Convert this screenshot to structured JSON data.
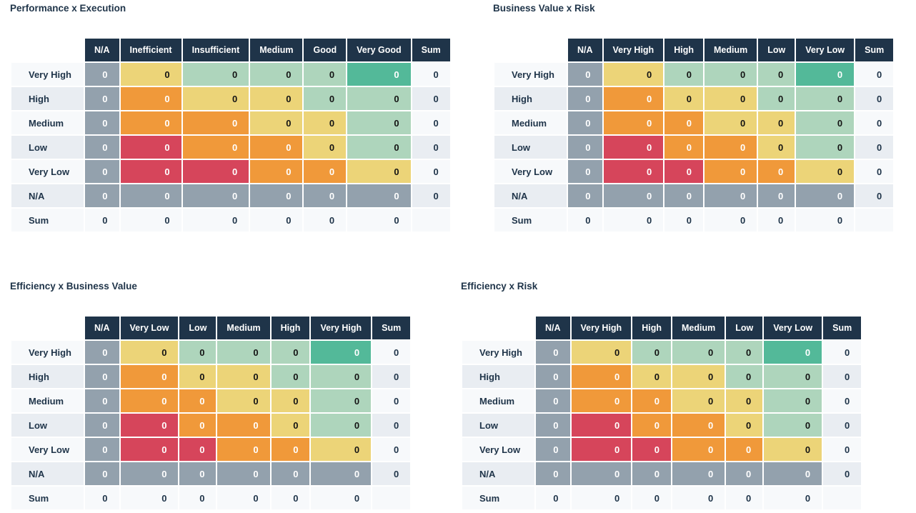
{
  "palette": {
    "header_bg": "#1f3449",
    "text_dark": "#1f3449",
    "cell_text_dark": "#141414",
    "cell_text_light": "#ffffff",
    "gray": "#93a1ad",
    "red": "#d6455b",
    "orange": "#f0993a",
    "yellow": "#ecd478",
    "green": "#aed5bc",
    "teal": "#53b999",
    "row_light": "#f7f9fb",
    "row_alt": "#e9edf2"
  },
  "labels": {
    "sum": "Sum"
  },
  "row_labels": [
    "Very High",
    "High",
    "Medium",
    "Low",
    "Very Low",
    "N/A",
    "Sum"
  ],
  "color_pattern": [
    [
      "gray",
      "yellow",
      "green",
      "green",
      "green",
      "teal"
    ],
    [
      "gray",
      "orange",
      "yellow",
      "yellow",
      "green",
      "green"
    ],
    [
      "gray",
      "orange",
      "orange",
      "yellow",
      "yellow",
      "green"
    ],
    [
      "gray",
      "red",
      "orange",
      "orange",
      "yellow",
      "green"
    ],
    [
      "gray",
      "red",
      "red",
      "orange",
      "orange",
      "yellow"
    ],
    [
      "gray",
      "gray",
      "gray",
      "gray",
      "gray",
      "gray"
    ]
  ],
  "chart_data": [
    {
      "type": "heatmap",
      "title": "Performance x Execution",
      "columns": [
        "N/A",
        "Inefficient",
        "Insufficient",
        "Medium",
        "Good",
        "Very Good"
      ],
      "rows": [
        "Very High",
        "High",
        "Medium",
        "Low",
        "Very Low",
        "N/A"
      ],
      "values": [
        [
          0,
          0,
          0,
          0,
          0,
          0
        ],
        [
          0,
          0,
          0,
          0,
          0,
          0
        ],
        [
          0,
          0,
          0,
          0,
          0,
          0
        ],
        [
          0,
          0,
          0,
          0,
          0,
          0
        ],
        [
          0,
          0,
          0,
          0,
          0,
          0
        ],
        [
          0,
          0,
          0,
          0,
          0,
          0
        ]
      ],
      "row_sums": [
        0,
        0,
        0,
        0,
        0,
        0
      ],
      "col_sums": [
        0,
        0,
        0,
        0,
        0,
        0
      ]
    },
    {
      "type": "heatmap",
      "title": "Business Value x Risk",
      "columns": [
        "N/A",
        "Very High",
        "High",
        "Medium",
        "Low",
        "Very Low"
      ],
      "rows": [
        "Very High",
        "High",
        "Medium",
        "Low",
        "Very Low",
        "N/A"
      ],
      "values": [
        [
          0,
          0,
          0,
          0,
          0,
          0
        ],
        [
          0,
          0,
          0,
          0,
          0,
          0
        ],
        [
          0,
          0,
          0,
          0,
          0,
          0
        ],
        [
          0,
          0,
          0,
          0,
          0,
          0
        ],
        [
          0,
          0,
          0,
          0,
          0,
          0
        ],
        [
          0,
          0,
          0,
          0,
          0,
          0
        ]
      ],
      "row_sums": [
        0,
        0,
        0,
        0,
        0,
        0
      ],
      "col_sums": [
        0,
        0,
        0,
        0,
        0,
        0
      ]
    },
    {
      "type": "heatmap",
      "title": "Efficiency x Business Value",
      "columns": [
        "N/A",
        "Very Low",
        "Low",
        "Medium",
        "High",
        "Very High"
      ],
      "rows": [
        "Very High",
        "High",
        "Medium",
        "Low",
        "Very Low",
        "N/A"
      ],
      "values": [
        [
          0,
          0,
          0,
          0,
          0,
          0
        ],
        [
          0,
          0,
          0,
          0,
          0,
          0
        ],
        [
          0,
          0,
          0,
          0,
          0,
          0
        ],
        [
          0,
          0,
          0,
          0,
          0,
          0
        ],
        [
          0,
          0,
          0,
          0,
          0,
          0
        ],
        [
          0,
          0,
          0,
          0,
          0,
          0
        ]
      ],
      "row_sums": [
        0,
        0,
        0,
        0,
        0,
        0
      ],
      "col_sums": [
        0,
        0,
        0,
        0,
        0,
        0
      ]
    },
    {
      "type": "heatmap",
      "title": "Efficiency x Risk",
      "columns": [
        "N/A",
        "Very High",
        "High",
        "Medium",
        "Low",
        "Very Low"
      ],
      "rows": [
        "Very High",
        "High",
        "Medium",
        "Low",
        "Very Low",
        "N/A"
      ],
      "values": [
        [
          0,
          0,
          0,
          0,
          0,
          0
        ],
        [
          0,
          0,
          0,
          0,
          0,
          0
        ],
        [
          0,
          0,
          0,
          0,
          0,
          0
        ],
        [
          0,
          0,
          0,
          0,
          0,
          0
        ],
        [
          0,
          0,
          0,
          0,
          0,
          0
        ],
        [
          0,
          0,
          0,
          0,
          0,
          0
        ]
      ],
      "row_sums": [
        0,
        0,
        0,
        0,
        0,
        0
      ],
      "col_sums": [
        0,
        0,
        0,
        0,
        0,
        0
      ]
    }
  ]
}
